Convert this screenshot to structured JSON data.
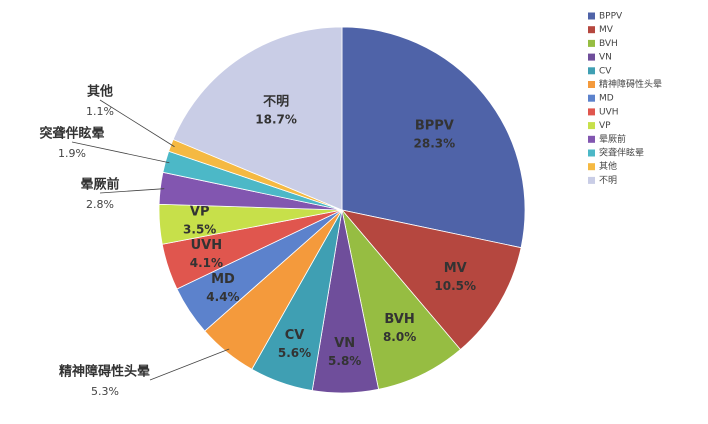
{
  "chart_data": {
    "type": "pie",
    "categories": [
      "BPPV",
      "MV",
      "BVH",
      "VN",
      "CV",
      "精神障碍性头晕",
      "MD",
      "UVH",
      "VP",
      "晕厥前",
      "突聋伴眩晕",
      "其他",
      "不明"
    ],
    "values": [
      28.3,
      10.5,
      8.0,
      5.8,
      5.6,
      5.3,
      4.4,
      4.1,
      3.5,
      2.8,
      1.9,
      1.1,
      18.7
    ],
    "value_labels": [
      "28.3%",
      "10.5%",
      "8.0%",
      "5.8%",
      "5.6%",
      "5.3%",
      "4.4%",
      "4.1%",
      "3.5%",
      "2.8%",
      "1.9%",
      "1.1%",
      "18.7%"
    ],
    "colors": [
      "#4f63a8",
      "#b5473f",
      "#96bd42",
      "#6f4e9b",
      "#3f9fb3",
      "#f49a3c",
      "#5c82cc",
      "#e0564e",
      "#c7e04a",
      "#8256b0",
      "#4cb8c7",
      "#f5b942",
      "#c9cde6"
    ],
    "legend": "right"
  }
}
